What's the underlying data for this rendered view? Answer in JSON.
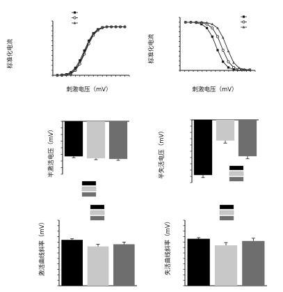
{
  "panels": {
    "act_curve": {
      "xlabel": "刺激电压（mV）",
      "ylabel": "标准化电流"
    },
    "inact_curve": {
      "xlabel": "刺激电压（mV）",
      "ylabel": "标准化电流"
    },
    "act_v_half": {
      "ylabel": "半激活电压（mV）"
    },
    "inact_v_half": {
      "ylabel": "半失活电压（mV）"
    },
    "act_slope": {
      "ylabel": "激活曲线斜率（mV）"
    },
    "inact_slope": {
      "ylabel": "失活曲线斜率（mV）"
    }
  },
  "colors": {
    "series": [
      "#000000",
      "#c8c8c8",
      "#6e6e6e"
    ],
    "axis": "#111111"
  },
  "chart_data": [
    {
      "type": "line",
      "ylabel": "标准化电流",
      "xlabel": "刺激电压（mV）",
      "series": [
        {
          "x": [
            -90,
            -80,
            -70,
            -60,
            -50,
            -40,
            -30,
            -20,
            -10,
            0,
            10,
            20,
            30,
            40,
            50,
            60
          ],
          "values": [
            0.0,
            0.01,
            0.02,
            0.06,
            0.15,
            0.3,
            0.5,
            0.7,
            0.85,
            0.93,
            0.97,
            0.98,
            0.98,
            0.98,
            0.98,
            0.98
          ]
        },
        {
          "x": [
            -90,
            -80,
            -70,
            -60,
            -50,
            -40,
            -30,
            -20,
            -10,
            0,
            10,
            20,
            30,
            40,
            50,
            60
          ],
          "values": [
            0.0,
            0.0,
            0.01,
            0.03,
            0.1,
            0.23,
            0.43,
            0.64,
            0.81,
            0.91,
            0.96,
            0.98,
            0.98,
            0.98,
            0.98,
            0.98
          ]
        },
        {
          "x": [
            -90,
            -80,
            -70,
            -60,
            -50,
            -40,
            -30,
            -20,
            -10,
            0,
            10,
            20,
            30,
            40,
            50,
            60
          ],
          "values": [
            0.0,
            0.0,
            0.01,
            0.04,
            0.12,
            0.26,
            0.46,
            0.67,
            0.83,
            0.92,
            0.96,
            0.98,
            0.98,
            0.98,
            0.98,
            0.98
          ]
        }
      ],
      "xlim": [
        -100,
        70
      ],
      "ylim": [
        0,
        1.1
      ],
      "grid": false,
      "legend": "top-left"
    },
    {
      "type": "line",
      "ylabel": "标准化电流",
      "xlabel": "刺激电压（mV）",
      "series": [
        {
          "x": [
            -140,
            -130,
            -120,
            -110,
            -100,
            -90,
            -80,
            -70,
            -60,
            -50,
            -40,
            -30,
            -20
          ],
          "values": [
            1.0,
            1.0,
            0.99,
            0.96,
            0.88,
            0.7,
            0.42,
            0.18,
            0.06,
            0.02,
            0.01,
            0.01,
            0.01
          ]
        },
        {
          "x": [
            -140,
            -130,
            -120,
            -110,
            -100,
            -90,
            -80,
            -70,
            -60,
            -50,
            -40,
            -30,
            -20
          ],
          "values": [
            1.0,
            1.0,
            1.0,
            0.99,
            0.96,
            0.88,
            0.7,
            0.42,
            0.18,
            0.06,
            0.02,
            0.01,
            0.01
          ]
        },
        {
          "x": [
            -140,
            -130,
            -120,
            -110,
            -100,
            -90,
            -80,
            -70,
            -60,
            -50,
            -40,
            -30,
            -20
          ],
          "values": [
            1.0,
            1.0,
            1.0,
            1.0,
            0.99,
            0.96,
            0.88,
            0.68,
            0.4,
            0.16,
            0.05,
            0.02,
            0.01
          ]
        }
      ],
      "xlim": [
        -150,
        -10
      ],
      "ylim": [
        0,
        1.1
      ],
      "grid": false,
      "legend": "top-right"
    },
    {
      "type": "bar",
      "ylabel": "半激活电压（mV）",
      "values": [
        -26.5,
        -28.0,
        -28.5
      ],
      "errors": [
        1.0,
        1.0,
        1.0
      ],
      "ylim": [
        -40,
        0
      ],
      "grid": false,
      "legend": "bottom-center"
    },
    {
      "type": "bar",
      "ylabel": "半失活电压（mV）",
      "values": [
        -88,
        -33,
        -58
      ],
      "errors": [
        4,
        4,
        4
      ],
      "ylim": [
        -100,
        0
      ],
      "grid": false,
      "legend": "bottom-right"
    },
    {
      "type": "bar",
      "ylabel": "激活曲线斜率（mV）",
      "values": [
        8.4,
        7.2,
        7.6
      ],
      "errors": [
        0.2,
        0.4,
        0.4
      ],
      "ylim": [
        0,
        12
      ],
      "grid": false,
      "legend": "top-center"
    },
    {
      "type": "bar",
      "ylabel": "失活曲线斜率（mV）",
      "values": [
        8.6,
        7.4,
        8.2
      ],
      "errors": [
        0.2,
        0.5,
        0.5
      ],
      "ylim": [
        0,
        12
      ],
      "grid": false,
      "legend": "top-center"
    }
  ]
}
